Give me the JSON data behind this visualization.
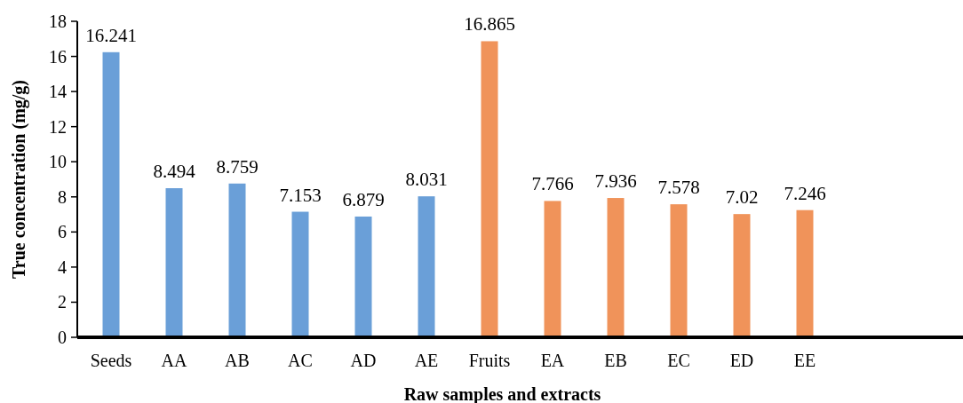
{
  "chart_data": {
    "type": "bar",
    "xlabel": "Raw samples and extracts",
    "ylabel": "True concentration (mg/g)",
    "categories": [
      "Seeds",
      "AA",
      "AB",
      "AC",
      "AD",
      "AE",
      "Fruits",
      "EA",
      "EB",
      "EC",
      "ED",
      "EE"
    ],
    "values": [
      16.241,
      8.494,
      8.759,
      7.153,
      6.879,
      8.031,
      16.865,
      7.766,
      7.936,
      7.578,
      7.02,
      7.246
    ],
    "colors": [
      "#6a9fd8",
      "#6a9fd8",
      "#6a9fd8",
      "#6a9fd8",
      "#6a9fd8",
      "#6a9fd8",
      "#f0935a",
      "#f0935a",
      "#f0935a",
      "#f0935a",
      "#f0935a",
      "#f0935a"
    ],
    "ylim": [
      0,
      18
    ],
    "yticks": [
      0,
      2,
      4,
      6,
      8,
      10,
      12,
      14,
      16,
      18
    ],
    "data_labels": true,
    "grid": false
  }
}
